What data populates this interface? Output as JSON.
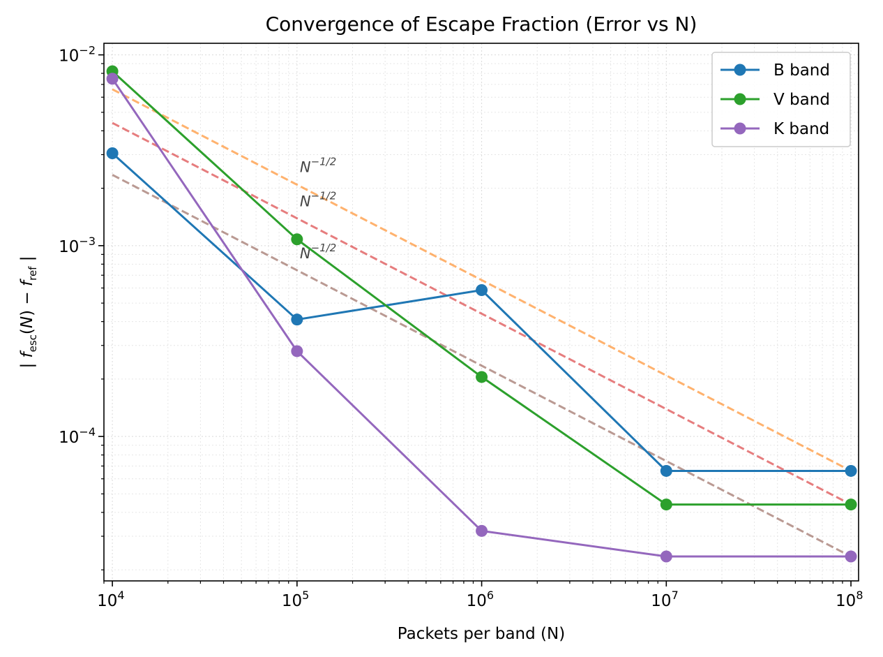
{
  "chart_data": {
    "type": "line",
    "title": "Convergence of Escape Fraction (Error vs N)",
    "xlabel": "Packets per band (N)",
    "ylabel": "| f_esc(N) − f_ref |",
    "xscale": "log",
    "yscale": "log",
    "xlim": [
      9000,
      110000000
    ],
    "ylim": [
      1.75e-05,
      0.0115
    ],
    "x_ticks": [
      10000,
      100000,
      1000000,
      10000000,
      100000000
    ],
    "x_tick_labels": [
      "10^4",
      "10^5",
      "10^6",
      "10^7",
      "10^8"
    ],
    "y_ticks": [
      0.0001,
      0.001,
      0.01
    ],
    "y_tick_labels": [
      "10^-4",
      "10^-3",
      "10^-2"
    ],
    "grid": true,
    "legend_position": "top-right",
    "x": [
      10000,
      100000,
      1000000,
      10000000,
      100000000
    ],
    "series": [
      {
        "name": "B band",
        "color": "#1f77b4",
        "marker": "circle",
        "values": [
          0.00305,
          0.00041,
          0.000585,
          6.6e-05,
          6.6e-05
        ]
      },
      {
        "name": "V band",
        "color": "#2ca02c",
        "marker": "circle",
        "values": [
          0.0082,
          0.00108,
          0.000205,
          4.4e-05,
          4.4e-05
        ]
      },
      {
        "name": "K band",
        "color": "#9467bd",
        "marker": "circle",
        "values": [
          0.0075,
          0.00028,
          3.2e-05,
          2.35e-05,
          2.35e-05
        ]
      }
    ],
    "reference_lines": [
      {
        "label": "N^{-1/2}",
        "color": "#ff7f0e",
        "style": "dashed",
        "x": [
          10000,
          100000000
        ],
        "y": [
          0.0066,
          6.6e-05
        ],
        "label_x": 100000,
        "label_y": 0.0026
      },
      {
        "label": "N^{-1/2}",
        "color": "#d62728",
        "style": "dashed",
        "x": [
          10000,
          100000000
        ],
        "y": [
          0.0044,
          4.4e-05
        ],
        "label_x": 100000,
        "label_y": 0.00172
      },
      {
        "label": "N^{-1/2}",
        "color": "#8c564b",
        "style": "dashed",
        "x": [
          10000,
          100000000
        ],
        "y": [
          0.00235,
          2.35e-05
        ],
        "label_x": 100000,
        "label_y": 0.00092
      }
    ]
  }
}
